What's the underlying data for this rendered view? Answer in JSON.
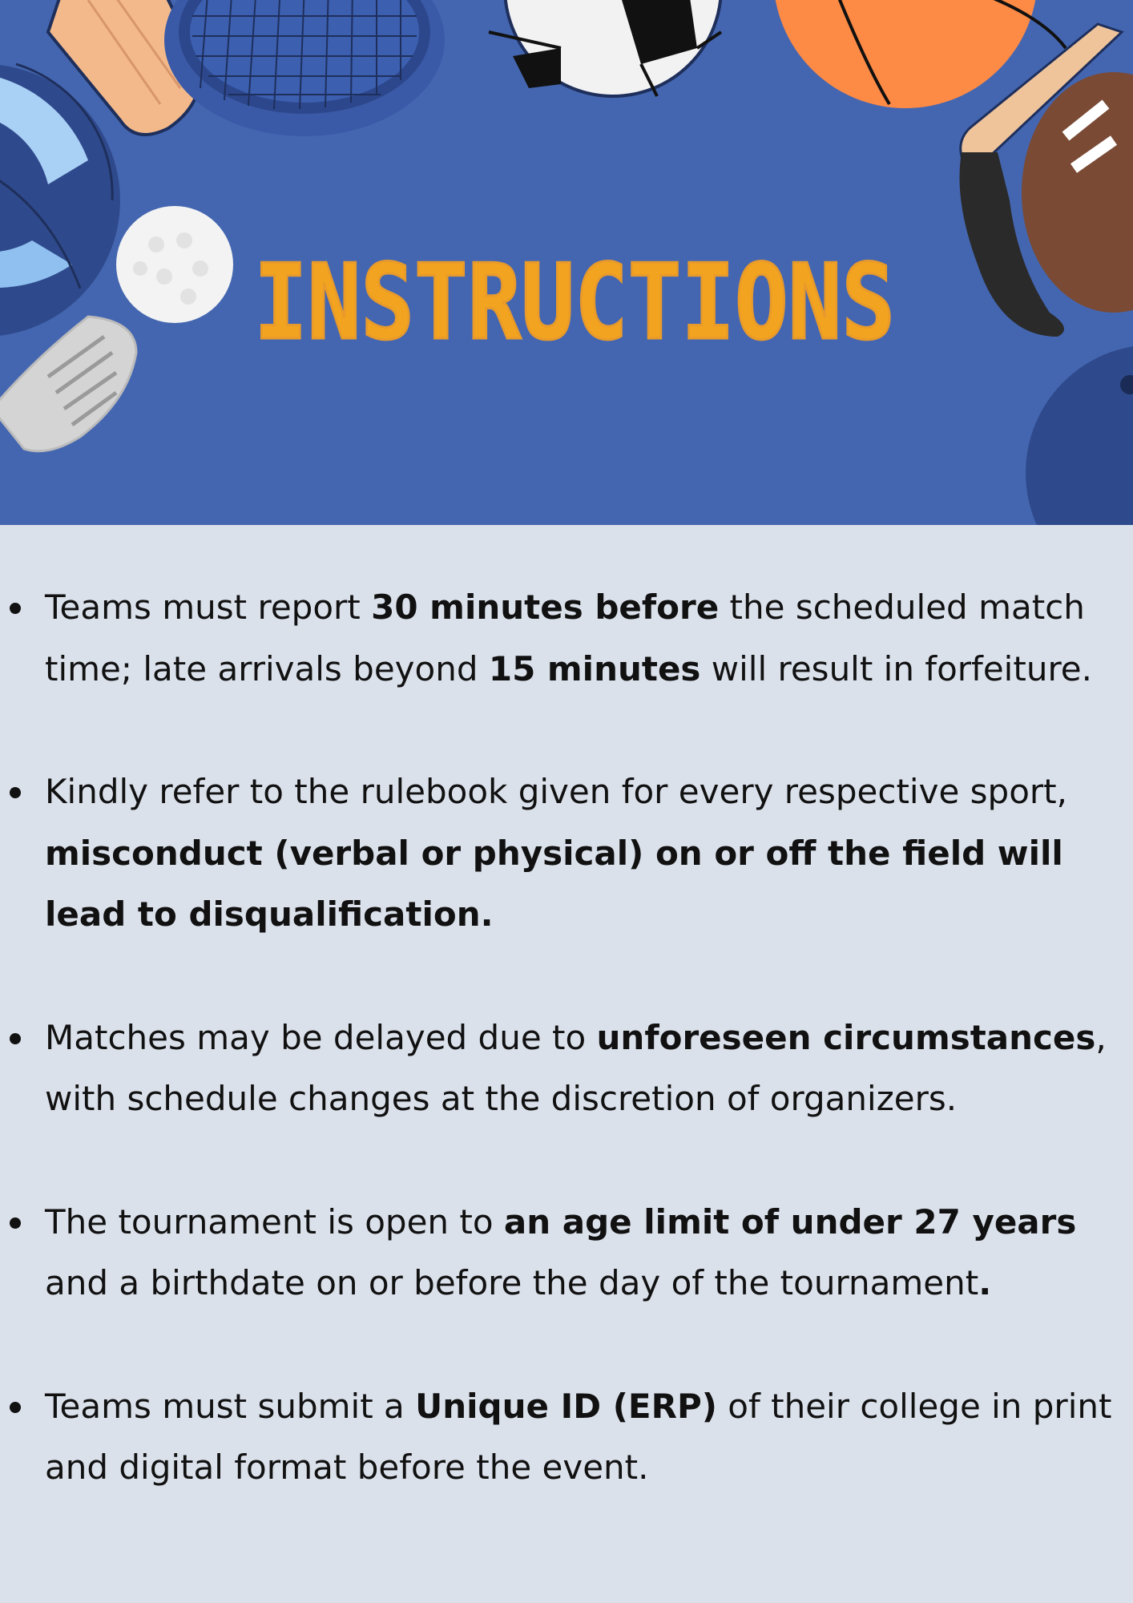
{
  "header": {
    "title": "INSTRUCTIONS",
    "decorations": [
      "tennis-racket-icon",
      "soccer-ball-icon",
      "basketball-icon",
      "cricket-bat-icon",
      "volleyball-icon",
      "golf-ball-icon",
      "golf-club-icon",
      "hockey-stick-icon",
      "american-football-icon",
      "bowling-ball-icon"
    ]
  },
  "colors": {
    "banner": "#4466b0",
    "title": "#f2a31f",
    "background": "#dbe1eb",
    "text": "#111111"
  },
  "rules": [
    {
      "parts": [
        {
          "text": "Teams must report ",
          "bold": false
        },
        {
          "text": "30 minutes before",
          "bold": true
        },
        {
          "text": " the scheduled match time; late arrivals beyond ",
          "bold": false
        },
        {
          "text": "15 minutes",
          "bold": true
        },
        {
          "text": " will result in forfeiture.",
          "bold": false
        }
      ]
    },
    {
      "parts": [
        {
          "text": "Kindly refer to the rulebook given for every respective sport, ",
          "bold": false
        },
        {
          "text": "misconduct (verbal or physical) on or off the field will lead to disqualification.",
          "bold": true
        }
      ]
    },
    {
      "parts": [
        {
          "text": "Matches may be delayed due to ",
          "bold": false
        },
        {
          "text": "unforeseen circumstances",
          "bold": true
        },
        {
          "text": ", with schedule changes at the discretion of organizers.",
          "bold": false
        }
      ]
    },
    {
      "parts": [
        {
          "text": "The tournament is open to ",
          "bold": false
        },
        {
          "text": "an age limit of under 27 years",
          "bold": true
        },
        {
          "text": " and a birthdate on or before the day of the tournament",
          "bold": false
        },
        {
          "text": ".",
          "bold": true
        }
      ]
    },
    {
      "parts": [
        {
          "text": "Teams must submit a ",
          "bold": false
        },
        {
          "text": "Unique ID (ERP)",
          "bold": true
        },
        {
          "text": " of their college in print and digital format before the event.",
          "bold": false
        }
      ]
    }
  ]
}
